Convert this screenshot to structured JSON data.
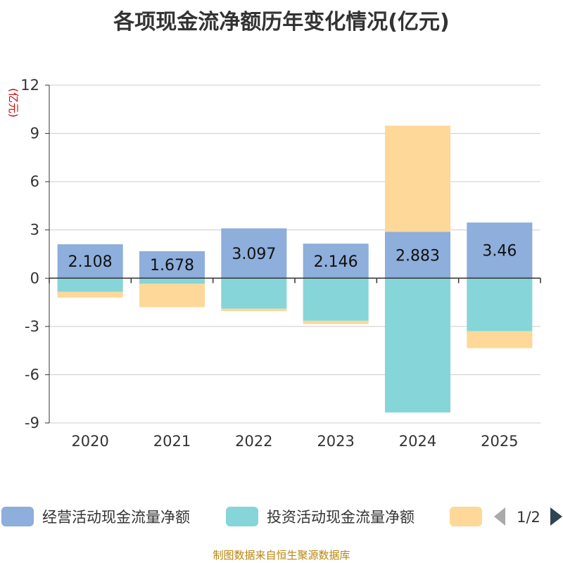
{
  "title": "各项现金流净额历年变化情况(亿元)",
  "source": "制图数据来自恒生聚源数据库",
  "pager": "1/2",
  "colors": {
    "operating": "#8eaedb",
    "investing": "#86d5d8",
    "financing": "#fed898"
  },
  "chart_data": {
    "type": "bar",
    "stacked": true,
    "ylabel": "(亿元)",
    "ylim": [
      -9,
      12
    ],
    "yticks": [
      -9,
      -6,
      -3,
      0,
      3,
      6,
      9,
      12
    ],
    "categories": [
      "2020",
      "2021",
      "2022",
      "2023",
      "2024",
      "2025"
    ],
    "series": [
      {
        "name": "经营活动现金流量净额",
        "values": [
          2.108,
          1.678,
          3.097,
          2.146,
          2.883,
          3.46
        ],
        "labels": [
          "2.108",
          "1.678",
          "3.097",
          "2.146",
          "2.883",
          "3.46"
        ]
      },
      {
        "name": "投资活动现金流量净额",
        "values": [
          -0.85,
          -0.35,
          -1.9,
          -2.65,
          -8.35,
          -3.3
        ]
      },
      {
        "name": "",
        "values": [
          -0.35,
          -1.45,
          -0.15,
          -0.2,
          6.6,
          -1.05
        ]
      }
    ]
  }
}
